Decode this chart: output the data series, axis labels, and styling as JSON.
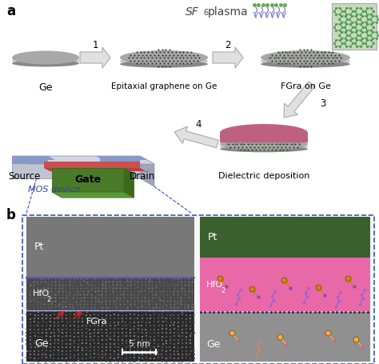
{
  "bg_color": "#ffffff",
  "fig_width": 4.74,
  "fig_height": 4.55,
  "label_a": "a",
  "label_b": "b",
  "ge_label": "Ge",
  "epi_label": "Epitaxial graphene on Ge",
  "fgra_label": "FGra on Ge",
  "gate_label": "Gate",
  "source_label": "Source",
  "drain_label": "Drain",
  "mos_label": "MOS device",
  "diel_label": "Dielectric deposition",
  "step1": "1",
  "step2": "2",
  "step3": "3",
  "step4": "4",
  "pt_label": "Pt",
  "hfo2_label": "HfO",
  "hfo2_sub": "2",
  "fgra_label2": "FGra",
  "ge_label2": "Ge",
  "scale_label": "5 nm",
  "ge_color": "#a8a8a8",
  "ge_rim_color": "#c8c8c8",
  "ge_shadow_color": "#888888",
  "graphene_dot_color": "#333333",
  "fgra_dot_color": "#3a8a3a",
  "dielectric_color": "#c06080",
  "gate_front_color": "#4a7a2a",
  "gate_top_color": "#5a9a3a",
  "gate_side_color": "#3a6a1a",
  "oxide_color": "#c85050",
  "substrate_front_color": "#8898c8",
  "substrate_top_color": "#9aa8d8",
  "substrate_side_color": "#7888b8",
  "ge_block_color": "#c0c4d0",
  "ge_block_side_color": "#a0a4b8",
  "arrow_gray": "#c8c8c8",
  "arrow_outline": "#aaaaaa",
  "blue_dash": "#3355bb",
  "pt_green": "#3a6030",
  "hfo2_pink": "#e868a8",
  "fgra_stripe": "#303050",
  "ge_sch_color": "#909090",
  "tem_pt_color": "#787878",
  "tem_hfo2_color": "#484848",
  "tem_ge_color": "#383838",
  "red_arrow_color": "#cc2222",
  "sf6_color": "#444444",
  "sf6_arrow_color": "#8888cc",
  "sf6_dot_color": "#66aa44",
  "lattice_bg": "#c8d8c0",
  "lattice_edge": "#cccccc",
  "lattice_atom": "#44aa44",
  "lattice_bond": "#555555"
}
